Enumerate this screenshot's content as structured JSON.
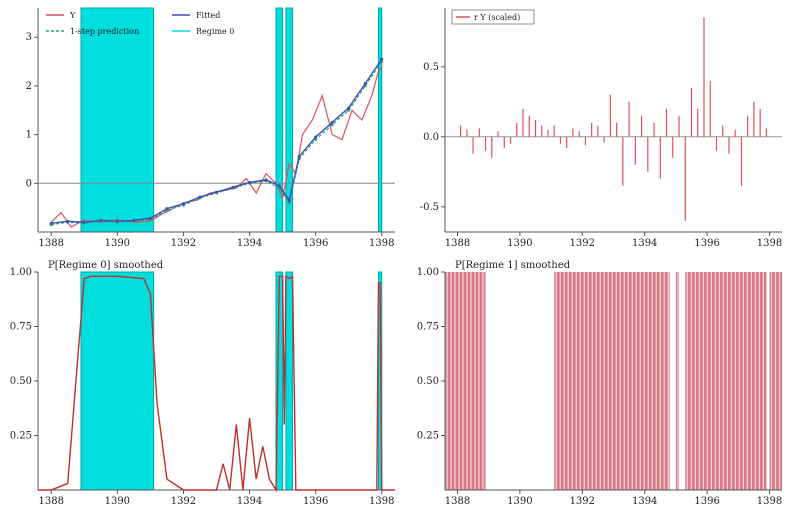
{
  "colors": {
    "actual": "#e05060",
    "onestep": "#2aa27a",
    "fitted": "#3a4fb8",
    "regime": "#00dede",
    "regime_edge": "#0aa6a6",
    "smooth0": "#c03030",
    "smooth1_line": "#e06070",
    "smooth1_fill": "#d77a84",
    "axis": "#555555"
  },
  "chart_data": [
    {
      "type": "line",
      "panel": "top-left",
      "title": "",
      "legend": [
        {
          "label": "Y"
        },
        {
          "label": "1-step prediction"
        },
        {
          "label": "Fitted"
        },
        {
          "label": "Regime 0"
        }
      ],
      "xlim": [
        1387.6,
        1398.4
      ],
      "ylim": [
        -1.0,
        3.6
      ],
      "xticks": [
        "1388",
        "1390",
        "1392",
        "1394",
        "1396",
        "1398"
      ],
      "yticks": [
        "0",
        "1",
        "2",
        "3"
      ],
      "reference_line_y": 0,
      "regime0_shading": [
        [
          1388.9,
          1391.1
        ],
        [
          1394.8,
          1395.0
        ],
        [
          1395.1,
          1395.3
        ],
        [
          1397.9,
          1398.0
        ]
      ],
      "series": [
        {
          "name": "Y",
          "x": [
            1388.0,
            1388.3,
            1388.6,
            1389.0,
            1389.5,
            1390.0,
            1390.5,
            1391.0,
            1391.3,
            1391.6,
            1392.0,
            1392.4,
            1392.8,
            1393.2,
            1393.6,
            1393.9,
            1394.2,
            1394.5,
            1394.8,
            1395.0,
            1395.2,
            1395.4,
            1395.6,
            1395.9,
            1396.2,
            1396.5,
            1396.8,
            1397.1,
            1397.4,
            1397.7,
            1397.9,
            1398.0
          ],
          "values": [
            -0.8,
            -0.6,
            -0.9,
            -0.75,
            -0.8,
            -0.75,
            -0.8,
            -0.78,
            -0.65,
            -0.55,
            -0.4,
            -0.35,
            -0.2,
            -0.15,
            -0.1,
            0.1,
            -0.2,
            0.2,
            0.0,
            -0.3,
            0.4,
            0.2,
            1.0,
            1.3,
            1.8,
            1.0,
            0.9,
            1.5,
            1.3,
            1.8,
            2.3,
            2.4
          ]
        },
        {
          "name": "1-step prediction",
          "x": [
            1388.0,
            1388.5,
            1389.0,
            1389.5,
            1390.0,
            1390.5,
            1391.0,
            1391.5,
            1392.0,
            1392.5,
            1393.0,
            1393.5,
            1394.0,
            1394.5,
            1394.9,
            1395.2,
            1395.5,
            1396.0,
            1396.5,
            1397.0,
            1397.5,
            1398.0
          ],
          "values": [
            -0.85,
            -0.8,
            -0.82,
            -0.78,
            -0.8,
            -0.78,
            -0.75,
            -0.55,
            -0.45,
            -0.3,
            -0.2,
            -0.1,
            0.0,
            0.05,
            -0.1,
            -0.4,
            0.5,
            0.9,
            1.2,
            1.5,
            2.0,
            2.5
          ]
        },
        {
          "name": "Fitted",
          "x": [
            1388.0,
            1388.5,
            1389.0,
            1389.5,
            1390.0,
            1390.5,
            1391.0,
            1391.5,
            1392.0,
            1392.5,
            1393.0,
            1393.5,
            1394.0,
            1394.5,
            1394.9,
            1395.2,
            1395.5,
            1396.0,
            1396.5,
            1397.0,
            1397.5,
            1398.0
          ],
          "values": [
            -0.82,
            -0.78,
            -0.8,
            -0.76,
            -0.78,
            -0.76,
            -0.72,
            -0.52,
            -0.42,
            -0.28,
            -0.18,
            -0.08,
            0.02,
            0.07,
            -0.05,
            -0.35,
            0.55,
            0.95,
            1.25,
            1.55,
            2.05,
            2.55
          ]
        }
      ]
    },
    {
      "type": "bar",
      "panel": "top-right",
      "title": "",
      "legend": [
        {
          "label": "r Y (scaled)"
        }
      ],
      "xlim": [
        1387.6,
        1398.4
      ],
      "ylim": [
        -0.68,
        0.92
      ],
      "xticks": [
        "1388",
        "1390",
        "1392",
        "1394",
        "1396",
        "1398"
      ],
      "yticks": [
        "-0.5",
        "0.0",
        "0.5"
      ],
      "series": [
        {
          "name": "r Y (scaled)",
          "x": [
            1388.1,
            1388.3,
            1388.5,
            1388.7,
            1388.9,
            1389.1,
            1389.3,
            1389.5,
            1389.7,
            1389.9,
            1390.1,
            1390.3,
            1390.5,
            1390.7,
            1390.9,
            1391.1,
            1391.3,
            1391.5,
            1391.7,
            1391.9,
            1392.1,
            1392.3,
            1392.5,
            1392.7,
            1392.9,
            1393.1,
            1393.3,
            1393.5,
            1393.7,
            1393.9,
            1394.1,
            1394.3,
            1394.5,
            1394.7,
            1394.9,
            1395.1,
            1395.3,
            1395.5,
            1395.7,
            1395.9,
            1396.1,
            1396.3,
            1396.5,
            1396.7,
            1396.9,
            1397.1,
            1397.3,
            1397.5,
            1397.7,
            1397.9
          ],
          "values": [
            0.08,
            0.05,
            -0.12,
            0.06,
            -0.1,
            -0.15,
            0.04,
            -0.08,
            -0.05,
            0.1,
            0.2,
            0.15,
            0.12,
            0.08,
            0.05,
            0.08,
            -0.05,
            -0.08,
            0.06,
            0.04,
            -0.06,
            0.1,
            0.08,
            -0.04,
            0.3,
            0.1,
            -0.35,
            0.25,
            -0.2,
            0.15,
            -0.25,
            0.1,
            -0.3,
            0.2,
            -0.15,
            0.15,
            -0.6,
            0.35,
            0.2,
            0.85,
            0.4,
            -0.1,
            0.08,
            -0.12,
            0.05,
            -0.35,
            0.15,
            0.25,
            0.2,
            0.06
          ]
        }
      ]
    },
    {
      "type": "line",
      "panel": "bottom-left",
      "title": "P[Regime 0] smoothed",
      "xlim": [
        1387.6,
        1398.4
      ],
      "ylim": [
        0,
        1.0
      ],
      "xticks": [
        "1388",
        "1390",
        "1392",
        "1394",
        "1396",
        "1398"
      ],
      "yticks": [
        "0.25",
        "0.50",
        "0.75",
        "1.00"
      ],
      "regime0_shading": [
        [
          1388.9,
          1391.1
        ],
        [
          1394.8,
          1395.0
        ],
        [
          1395.1,
          1395.3
        ],
        [
          1397.9,
          1398.0
        ]
      ],
      "series": [
        {
          "name": "P[Regime 0] smoothed",
          "x": [
            1387.6,
            1388.0,
            1388.5,
            1388.8,
            1389.0,
            1389.2,
            1390.0,
            1390.8,
            1391.0,
            1391.2,
            1391.5,
            1392.0,
            1392.5,
            1393.0,
            1393.2,
            1393.4,
            1393.6,
            1393.8,
            1394.0,
            1394.2,
            1394.4,
            1394.6,
            1394.8,
            1394.9,
            1395.0,
            1395.05,
            1395.1,
            1395.2,
            1395.3,
            1395.4,
            1396.0,
            1397.0,
            1397.85,
            1397.9,
            1397.95,
            1398.0,
            1398.4
          ],
          "values": [
            0,
            0,
            0.03,
            0.6,
            0.97,
            0.98,
            0.98,
            0.97,
            0.9,
            0.4,
            0.05,
            0,
            0,
            0,
            0.12,
            0,
            0.3,
            0,
            0.33,
            0.05,
            0.2,
            0.05,
            0,
            0.98,
            0.98,
            0.3,
            0.98,
            0.97,
            0.98,
            0,
            0,
            0,
            0,
            0.95,
            0.95,
            0,
            0
          ]
        }
      ]
    },
    {
      "type": "area",
      "panel": "bottom-right",
      "title": "P[Regime 1] smoothed",
      "xlim": [
        1387.6,
        1398.4
      ],
      "ylim": [
        0,
        1.0
      ],
      "xticks": [
        "1388",
        "1390",
        "1392",
        "1394",
        "1396",
        "1398"
      ],
      "yticks": [
        "0.25",
        "0.50",
        "0.75",
        "1.00"
      ],
      "regime1_bands": [
        [
          1387.6,
          1388.9
        ],
        [
          1391.1,
          1394.8
        ],
        [
          1395.0,
          1395.1
        ],
        [
          1395.3,
          1397.9
        ],
        [
          1398.0,
          1398.4
        ]
      ]
    }
  ]
}
